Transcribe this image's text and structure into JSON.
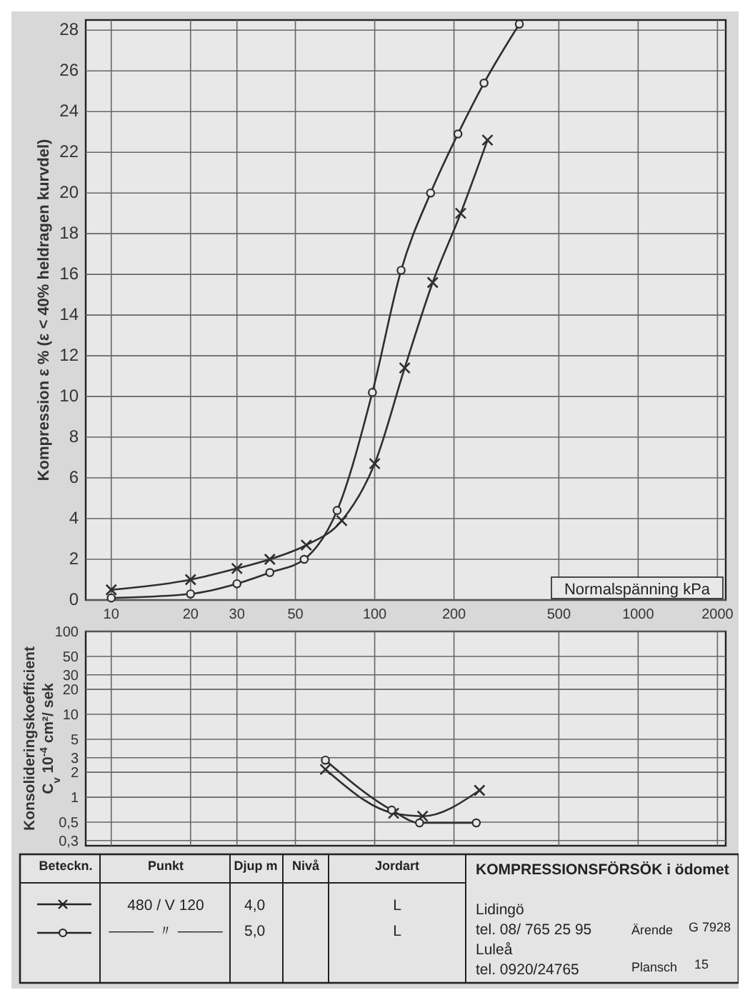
{
  "chart_data": [
    {
      "type": "line",
      "ylabel": "Kompression ε % (ε < 40% heldragen kurvdel)",
      "xlabel": "Normalspänning  kPa",
      "log": "x",
      "xlim": [
        8,
        2150
      ],
      "xticks": [
        10,
        20,
        30,
        50,
        100,
        200,
        500,
        1000,
        2000
      ],
      "ylim": [
        0,
        28.5
      ],
      "yticks": [
        0,
        2,
        4,
        6,
        8,
        10,
        12,
        14,
        16,
        18,
        20,
        22,
        24,
        26,
        28
      ],
      "grid": true,
      "line_style": "solid",
      "series": [
        {
          "color": "#2e2e2e",
          "marker": "cross",
          "x": [
            10,
            20,
            30,
            40,
            55,
            75,
            100,
            130,
            166,
            212,
            268
          ],
          "values": [
            0.5,
            1.0,
            1.55,
            2.0,
            2.7,
            3.9,
            6.7,
            11.4,
            15.6,
            19.0,
            22.6
          ]
        },
        {
          "color": "#2e2e2e",
          "marker": "circle",
          "x": [
            10,
            20,
            30,
            40,
            54,
            72,
            98,
            126,
            163,
            207,
            260,
            354
          ],
          "values": [
            0.1,
            0.3,
            0.8,
            1.35,
            2.0,
            4.4,
            10.2,
            16.2,
            20.0,
            22.9,
            25.4,
            28.3
          ]
        }
      ]
    },
    {
      "type": "line",
      "ylabel": "Konsolideringskoefficient\nC$_{v}$ 10$^{-4}$ cm²/ sek",
      "log": "xy",
      "xlim": [
        8,
        2150
      ],
      "xticks": [
        10,
        20,
        30,
        50,
        100,
        200,
        500,
        1000,
        2000
      ],
      "ylim": [
        0.26,
        100
      ],
      "yticks": [
        100,
        50,
        30,
        20,
        10,
        5,
        3,
        2,
        1,
        {
          "value": 0.5,
          "label": "0,5"
        },
        {
          "value": 0.3,
          "label": "0,3"
        }
      ],
      "tick_labels": "y",
      "grid": true,
      "line_style": "solid",
      "series": [
        {
          "color": "#2e2e2e",
          "marker": "cross",
          "x": [
            65,
            118,
            152,
            250
          ],
          "values": [
            2.17,
            0.64,
            0.59,
            1.21
          ]
        },
        {
          "color": "#2e2e2e",
          "marker": "circle",
          "x": [
            65,
            116,
            148,
            243
          ],
          "values": [
            2.8,
            0.7,
            0.49,
            0.49
          ]
        }
      ]
    },
    {
      "type": "other",
      "annotations": [
        "Beteckn.",
        "Punkt",
        "Djup m",
        "Nivå",
        "Jordart",
        "480 / V 120",
        "4,0",
        "L",
        "——— 〃 ———",
        "5,0",
        "L",
        "KOMPRESSIONSFÖRSÖK i ödomet",
        "Lidingö",
        "tel. 08/ 765 25 95",
        "Luleå",
        "tel. 0920/24765",
        "Ärende",
        "G 7928",
        "Plansch",
        "15"
      ]
    }
  ]
}
